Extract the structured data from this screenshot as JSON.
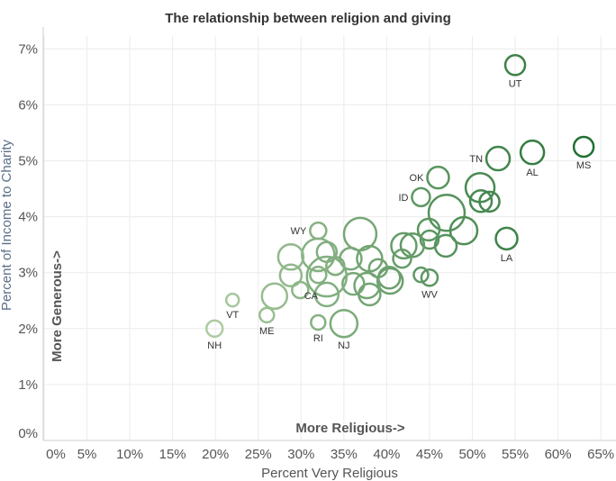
{
  "chart_data": {
    "type": "scatter",
    "title": "The relationship between religion and giving",
    "xlabel": "Percent Very Religious",
    "ylabel": "Percent of Income to Charity",
    "xlim": [
      -0.1,
      67
    ],
    "ylim": [
      0,
      7.3
    ],
    "x_ticks": [
      "0%",
      "5%",
      "10%",
      "15%",
      "20%",
      "25%",
      "30%",
      "35%",
      "40%",
      "45%",
      "50%",
      "55%",
      "60%",
      "65%"
    ],
    "y_ticks": [
      "0%",
      "1%",
      "2%",
      "3%",
      "4%",
      "5%",
      "6%",
      "7%"
    ],
    "grid": true,
    "annotations": {
      "x_direction": "More Religious->",
      "y_direction": "More Generous->"
    },
    "color_scale": {
      "low": "#b3cfa6",
      "high": "#1e6e30"
    },
    "points": [
      {
        "label": "UT",
        "x": 55.0,
        "y": 6.71,
        "size": 11,
        "label_pos": "below"
      },
      {
        "label": "TN",
        "x": 53.0,
        "y": 5.04,
        "size": 13,
        "label_pos": "left"
      },
      {
        "label": "AL",
        "x": 57.0,
        "y": 5.15,
        "size": 13,
        "label_pos": "below"
      },
      {
        "label": "MS",
        "x": 63.0,
        "y": 5.25,
        "size": 11,
        "label_pos": "below"
      },
      {
        "label": "OK",
        "x": 46.0,
        "y": 4.7,
        "size": 12,
        "label_pos": "left"
      },
      {
        "label": "ID",
        "x": 44.0,
        "y": 4.35,
        "size": 10,
        "label_pos": "left"
      },
      {
        "label": "",
        "x": 50.9,
        "y": 4.52,
        "size": 16
      },
      {
        "label": "",
        "x": 51.0,
        "y": 4.28,
        "size": 12
      },
      {
        "label": "",
        "x": 52.0,
        "y": 4.27,
        "size": 11
      },
      {
        "label": "",
        "x": 47.0,
        "y": 4.07,
        "size": 20
      },
      {
        "label": "",
        "x": 49.0,
        "y": 3.75,
        "size": 15
      },
      {
        "label": "",
        "x": 44.9,
        "y": 3.77,
        "size": 12
      },
      {
        "label": "",
        "x": 45.0,
        "y": 3.59,
        "size": 10
      },
      {
        "label": "",
        "x": 46.9,
        "y": 3.48,
        "size": 12
      },
      {
        "label": "LA",
        "x": 54.0,
        "y": 3.61,
        "size": 12,
        "label_pos": "below"
      },
      {
        "label": "",
        "x": 42.0,
        "y": 3.48,
        "size": 14
      },
      {
        "label": "",
        "x": 43.0,
        "y": 3.49,
        "size": 13
      },
      {
        "label": "",
        "x": 41.8,
        "y": 3.25,
        "size": 10
      },
      {
        "label": "",
        "x": 44.0,
        "y": 2.96,
        "size": 8
      },
      {
        "label": "WV",
        "x": 45.0,
        "y": 2.91,
        "size": 9,
        "label_pos": "below"
      },
      {
        "label": "",
        "x": 40.4,
        "y": 2.85,
        "size": 14
      },
      {
        "label": "",
        "x": 36.9,
        "y": 3.69,
        "size": 18
      },
      {
        "label": "",
        "x": 35.8,
        "y": 3.25,
        "size": 12
      },
      {
        "label": "",
        "x": 38.0,
        "y": 3.25,
        "size": 14
      },
      {
        "label": "",
        "x": 39.0,
        "y": 3.08,
        "size": 10
      },
      {
        "label": "",
        "x": 40.3,
        "y": 2.91,
        "size": 12
      },
      {
        "label": "",
        "x": 36.1,
        "y": 2.8,
        "size": 12
      },
      {
        "label": "",
        "x": 37.7,
        "y": 2.77,
        "size": 14
      },
      {
        "label": "",
        "x": 38.0,
        "y": 2.61,
        "size": 12
      },
      {
        "label": "",
        "x": 34.0,
        "y": 3.12,
        "size": 10
      },
      {
        "label": "",
        "x": 32.0,
        "y": 3.32,
        "size": 18
      },
      {
        "label": "",
        "x": 33.0,
        "y": 3.37,
        "size": 11
      },
      {
        "label": "",
        "x": 33.0,
        "y": 2.93,
        "size": 22
      },
      {
        "label": "",
        "x": 32.0,
        "y": 2.96,
        "size": 9
      },
      {
        "label": "",
        "x": 33.0,
        "y": 2.61,
        "size": 13
      },
      {
        "label": "WY",
        "x": 32.0,
        "y": 3.75,
        "size": 9,
        "label_pos": "left"
      },
      {
        "label": "",
        "x": 28.8,
        "y": 3.28,
        "size": 14
      },
      {
        "label": "",
        "x": 28.8,
        "y": 2.95,
        "size": 12
      },
      {
        "label": "CA",
        "x": 29.9,
        "y": 2.69,
        "size": 9,
        "label_pos": "below-right"
      },
      {
        "label": "",
        "x": 26.9,
        "y": 2.58,
        "size": 14
      },
      {
        "label": "ME",
        "x": 26.0,
        "y": 2.24,
        "size": 8,
        "label_pos": "below"
      },
      {
        "label": "VT",
        "x": 22.0,
        "y": 2.51,
        "size": 7,
        "label_pos": "below"
      },
      {
        "label": "NH",
        "x": 19.9,
        "y": 2.0,
        "size": 9,
        "label_pos": "below"
      },
      {
        "label": "RI",
        "x": 32.0,
        "y": 2.11,
        "size": 8,
        "label_pos": "below"
      },
      {
        "label": "NJ",
        "x": 35.0,
        "y": 2.09,
        "size": 15,
        "label_pos": "below"
      }
    ]
  }
}
